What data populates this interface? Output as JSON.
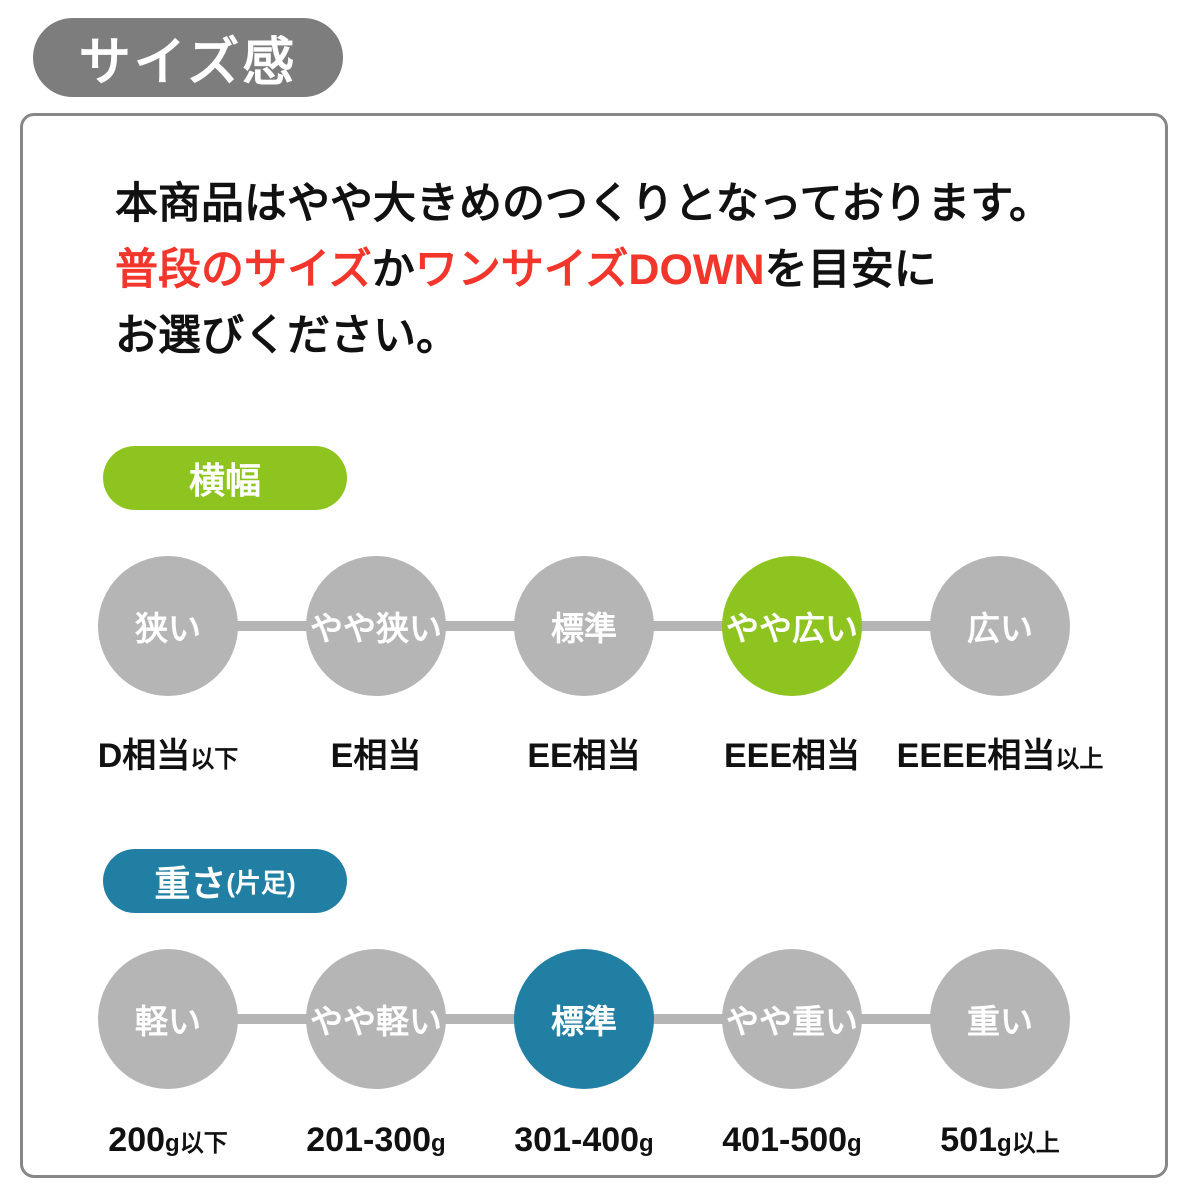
{
  "page_title": "サイズ感",
  "intro": {
    "line1": "本商品はやや大きめのつくりとなっております。",
    "line2_red1": "普段のサイズ",
    "line2_black1": "か",
    "line2_red2": "ワンサイズDOWN",
    "line2_black2": "を目安に",
    "line3": "お選びください。"
  },
  "width_section": {
    "badge_label": "横幅",
    "scale": [
      {
        "label": "狭い",
        "active": false,
        "sub_main": "D相当",
        "sub_small": "以下"
      },
      {
        "label": "やや狭い",
        "active": false,
        "sub_main": "E相当",
        "sub_small": ""
      },
      {
        "label": "標準",
        "active": false,
        "sub_main": "EE相当",
        "sub_small": ""
      },
      {
        "label": "やや広い",
        "active": true,
        "sub_main": "EEE相当",
        "sub_small": ""
      },
      {
        "label": "広い",
        "active": false,
        "sub_main": "EEEE相当",
        "sub_small": "以上"
      }
    ]
  },
  "weight_section": {
    "badge_main": "重さ",
    "badge_small": "(片足)",
    "scale": [
      {
        "label": "軽い",
        "active": false,
        "sub_main": "200",
        "sub_small": "g以下"
      },
      {
        "label": "やや軽い",
        "active": false,
        "sub_main": "201-300",
        "sub_small": "g"
      },
      {
        "label": "標準",
        "active": true,
        "sub_main": "301-400",
        "sub_small": "g"
      },
      {
        "label": "やや重い",
        "active": false,
        "sub_main": "401-500",
        "sub_small": "g"
      },
      {
        "label": "重い",
        "active": false,
        "sub_main": "501",
        "sub_small": "g以上"
      }
    ]
  },
  "colors": {
    "badge_gray": "#7d7d7d",
    "border_gray": "#878787",
    "circle_gray": "#b5b5b5",
    "accent_green": "#8ec41f",
    "accent_blue": "#217fa4",
    "accent_red": "#f3362b"
  }
}
